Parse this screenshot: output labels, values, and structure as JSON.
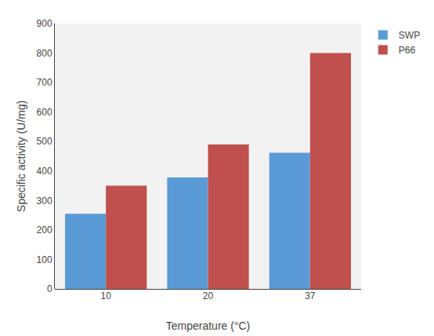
{
  "chart_data": {
    "type": "bar",
    "xlabel": "Temperature (°C)",
    "ylabel": "Specific activity (U/mg)",
    "categories": [
      "10",
      "20",
      "37"
    ],
    "series": [
      {
        "name": "SWP",
        "color": "#5B9BD5",
        "values": [
          255,
          378,
          462
        ]
      },
      {
        "name": "P66",
        "color": "#C0504D",
        "values": [
          350,
          490,
          800
        ]
      }
    ],
    "ylim": [
      0,
      900
    ],
    "yticks": [
      0,
      100,
      200,
      300,
      400,
      500,
      600,
      700,
      800,
      900
    ],
    "grid": false,
    "legend": "upper right"
  }
}
